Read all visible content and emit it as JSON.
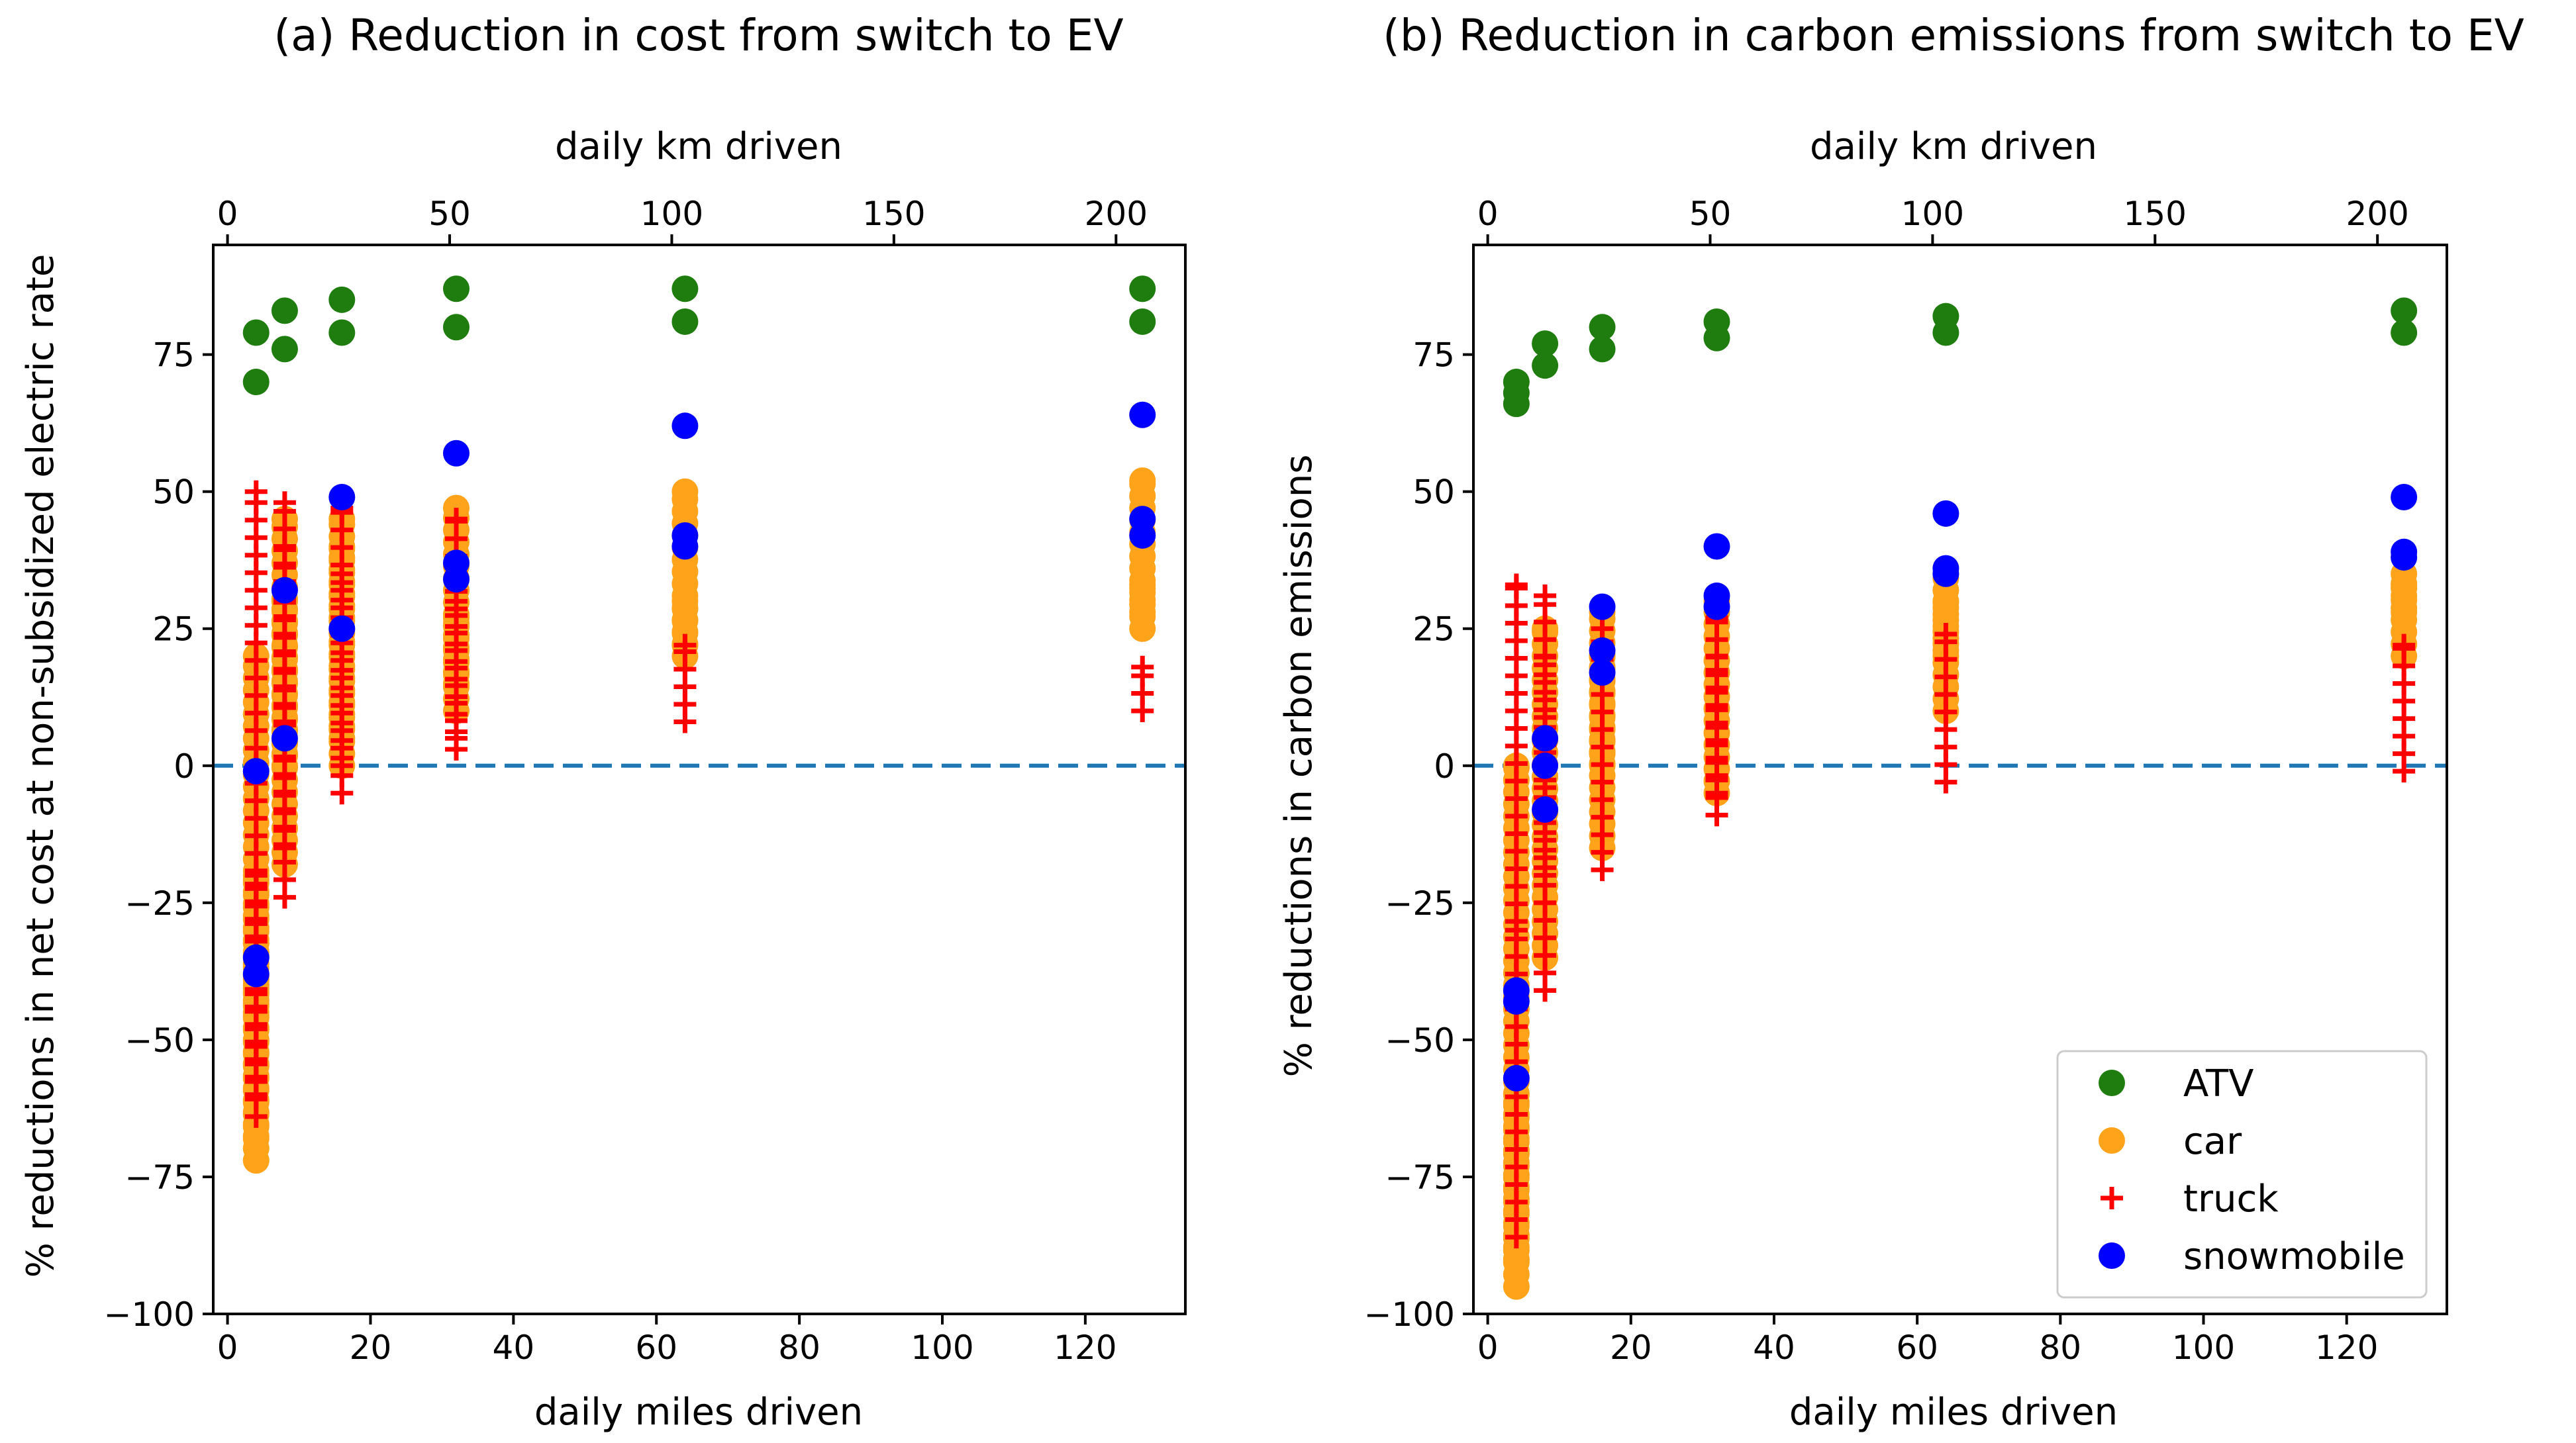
{
  "colors": {
    "ATV": "#1e7d0e",
    "car": "#ffa31a",
    "truck": "#ff0000",
    "snowmobile": "#0000ff",
    "zero_line": "#1f77b4",
    "axes": "#000000"
  },
  "chart_data": [
    {
      "type": "scatter",
      "title": "(a) Reduction in cost from switch to EV",
      "xlabel": "daily miles driven",
      "ylabel": "% reductions in net cost at non-subsidized electric rate",
      "top_xlabel": "daily km driven",
      "xlim": [
        -2,
        134
      ],
      "ylim": [
        -100,
        95
      ],
      "xticks": [
        0,
        20,
        40,
        60,
        80,
        100,
        120
      ],
      "yticks": [
        -100,
        -75,
        -50,
        -25,
        0,
        25,
        50,
        75
      ],
      "top_xticks_km": [
        0,
        50,
        100,
        150,
        200
      ],
      "km_per_mile": 1.609,
      "zero_line": 0,
      "series": [
        {
          "name": "ATV",
          "marker": "circle",
          "x": [
            4,
            4,
            8,
            8,
            16,
            16,
            32,
            32,
            64,
            64,
            128,
            128
          ],
          "y": [
            79,
            70,
            83,
            76,
            85,
            79,
            87,
            80,
            87,
            81,
            87,
            81
          ]
        },
        {
          "name": "car",
          "marker": "circle",
          "x": [
            4,
            4,
            4,
            8,
            8,
            16,
            16,
            32,
            32,
            64,
            64,
            128,
            128
          ],
          "y_ranges": [
            [
              -72,
              20
            ],
            [
              -68,
              -40
            ],
            [
              -45,
              -20
            ],
            [
              -18,
              45
            ],
            [
              0,
              30
            ],
            [
              0,
              45
            ],
            [
              5,
              40
            ],
            [
              10,
              47
            ],
            [
              15,
              27
            ],
            [
              20,
              50
            ],
            [
              22,
              30
            ],
            [
              25,
              52
            ],
            [
              28,
              33
            ]
          ]
        },
        {
          "name": "truck",
          "marker": "plus",
          "x": [
            4,
            4,
            8,
            8,
            16,
            16,
            32,
            32,
            64,
            128
          ],
          "y_ranges": [
            [
              -64,
              50
            ],
            [
              -60,
              -20
            ],
            [
              -24,
              48
            ],
            [
              -15,
              40
            ],
            [
              -5,
              47
            ],
            [
              0,
              35
            ],
            [
              3,
              45
            ],
            [
              5,
              30
            ],
            [
              8,
              22
            ],
            [
              10,
              18
            ]
          ]
        },
        {
          "name": "snowmobile",
          "marker": "circle",
          "x": [
            4,
            4,
            4,
            8,
            8,
            16,
            16,
            32,
            32,
            32,
            64,
            64,
            64,
            128,
            128,
            128
          ],
          "y": [
            -1,
            -35,
            -38,
            32,
            5,
            49,
            25,
            57,
            37,
            34,
            62,
            42,
            40,
            64,
            45,
            42
          ]
        }
      ]
    },
    {
      "type": "scatter",
      "title": "(b) Reduction in carbon emissions from switch to EV",
      "xlabel": "daily miles driven",
      "ylabel": "% reductions in carbon emissions",
      "top_xlabel": "daily km driven",
      "xlim": [
        -2,
        134
      ],
      "ylim": [
        -100,
        95
      ],
      "xticks": [
        0,
        20,
        40,
        60,
        80,
        100,
        120
      ],
      "yticks": [
        -100,
        -75,
        -50,
        -25,
        0,
        25,
        50,
        75
      ],
      "top_xticks_km": [
        0,
        50,
        100,
        150,
        200
      ],
      "km_per_mile": 1.609,
      "zero_line": 0,
      "legend": {
        "position": "lower right",
        "entries": [
          "ATV",
          "car",
          "truck",
          "snowmobile"
        ]
      },
      "series": [
        {
          "name": "ATV",
          "marker": "circle",
          "x": [
            4,
            4,
            4,
            8,
            8,
            16,
            16,
            32,
            32,
            64,
            64,
            128,
            128
          ],
          "y": [
            70,
            68,
            66,
            77,
            73,
            80,
            76,
            81,
            78,
            82,
            79,
            83,
            79
          ]
        },
        {
          "name": "car",
          "marker": "circle",
          "x": [
            4,
            4,
            8,
            16,
            16,
            32,
            64,
            64,
            128,
            128
          ],
          "y_ranges": [
            [
              -95,
              0
            ],
            [
              -90,
              -60
            ],
            [
              -35,
              25
            ],
            [
              -15,
              28
            ],
            [
              0,
              20
            ],
            [
              -5,
              30
            ],
            [
              10,
              35
            ],
            [
              20,
              30
            ],
            [
              20,
              35
            ],
            [
              28,
              33
            ]
          ]
        },
        {
          "name": "truck",
          "marker": "plus",
          "x": [
            4,
            4,
            8,
            8,
            16,
            32,
            32,
            64,
            128
          ],
          "y_ranges": [
            [
              -86,
              33
            ],
            [
              -70,
              -30
            ],
            [
              -41,
              31
            ],
            [
              -20,
              20
            ],
            [
              -19,
              25
            ],
            [
              -9,
              27
            ],
            [
              -5,
              20
            ],
            [
              -3,
              24
            ],
            [
              -1,
              22
            ]
          ]
        },
        {
          "name": "snowmobile",
          "marker": "circle",
          "x": [
            4,
            4,
            4,
            8,
            8,
            8,
            16,
            16,
            16,
            32,
            32,
            32,
            64,
            64,
            64,
            128,
            128,
            128
          ],
          "y": [
            -41,
            -43,
            -57,
            5,
            0,
            -8,
            29,
            21,
            17,
            40,
            31,
            29,
            46,
            36,
            35,
            49,
            39,
            38
          ]
        }
      ]
    }
  ]
}
